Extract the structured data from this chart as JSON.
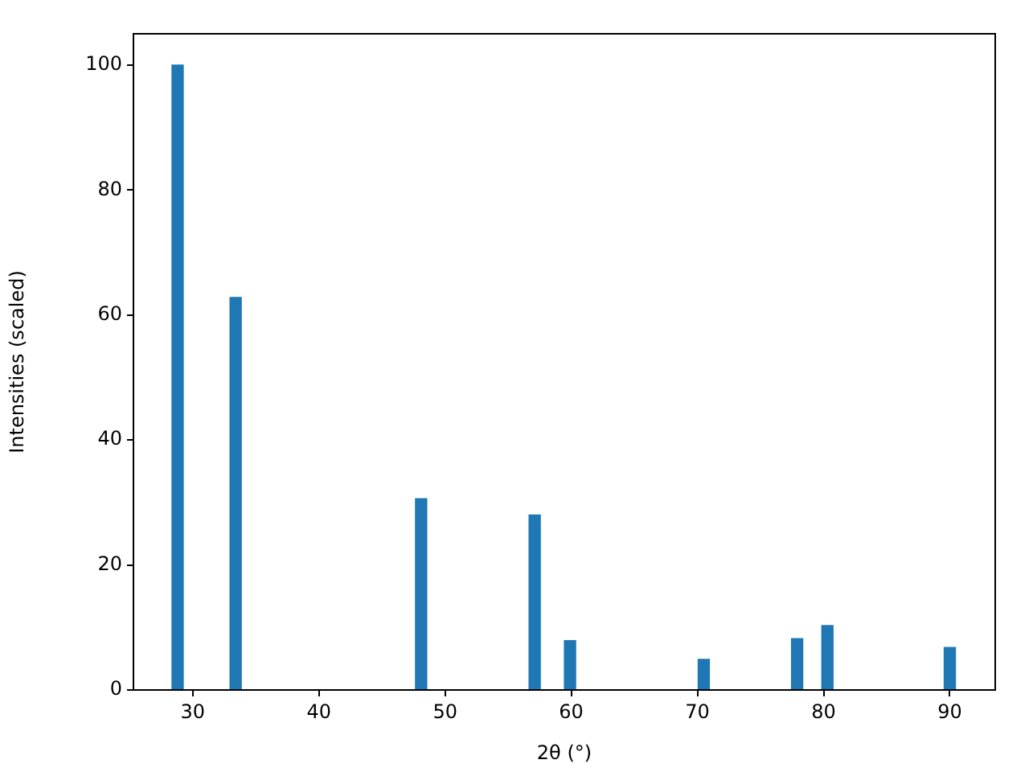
{
  "chart_data": {
    "type": "bar",
    "xlabel": "2θ (°)",
    "ylabel": "Intensities (scaled)",
    "x": [
      28.8,
      33.4,
      48.1,
      57.1,
      59.9,
      70.5,
      77.9,
      80.3,
      90.0
    ],
    "values": [
      100,
      62.8,
      30.6,
      28.0,
      7.9,
      4.9,
      8.2,
      10.3,
      6.8
    ],
    "color": "#1f77b4",
    "xlim": [
      25.3,
      93.6
    ],
    "xticks": [
      30,
      40,
      50,
      60,
      70,
      80,
      90
    ],
    "ylim": [
      0,
      105
    ],
    "yticks": [
      0,
      20,
      40,
      60,
      80,
      100
    ],
    "grid": false,
    "legend": false
  }
}
